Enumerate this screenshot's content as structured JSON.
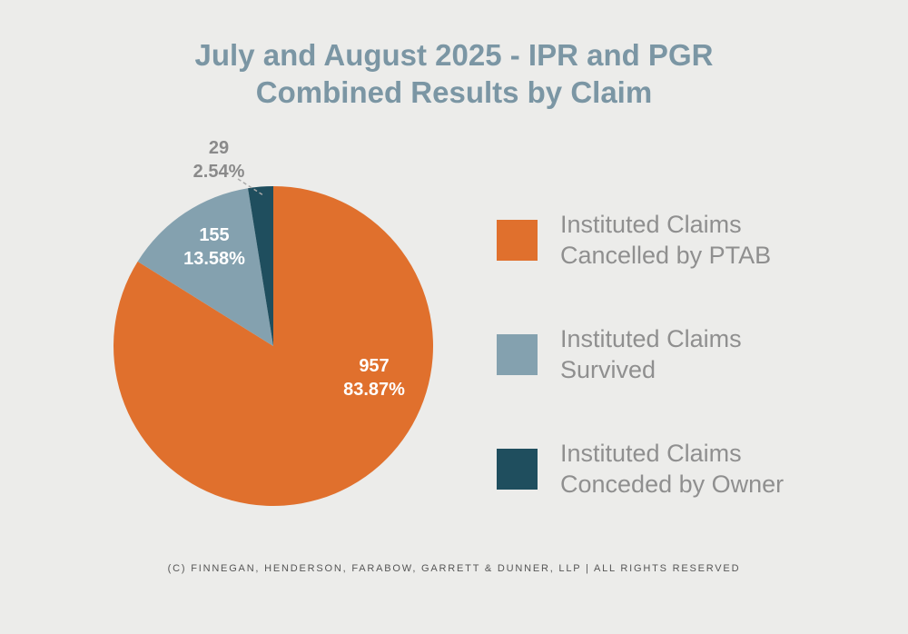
{
  "page": {
    "background_color": "#ececea"
  },
  "title": {
    "line1": "July and August 2025 - IPR and PGR",
    "line2": "Combined Results by Claim",
    "color": "#7b96a4"
  },
  "chart_data": {
    "type": "pie",
    "title": "July and August 2025 - IPR and PGR Combined Results by Claim",
    "direction": "clockwise",
    "start_angle_deg": 0,
    "legend_position": "right",
    "total": 1141,
    "slices": [
      {
        "label": "Instituted Claims Cancelled by PTAB",
        "value": 957,
        "percent": 83.87,
        "value_label": "957",
        "percent_label": "83.87%",
        "color": "#e0702d",
        "label_placement": "inside"
      },
      {
        "label": "Instituted Claims Survived",
        "value": 155,
        "percent": 13.58,
        "value_label": "155",
        "percent_label": "13.58%",
        "color": "#84a1af",
        "label_placement": "inside"
      },
      {
        "label": "Instituted Claims Conceded by Owner",
        "value": 29,
        "percent": 2.54,
        "value_label": "29",
        "percent_label": "2.54%",
        "color": "#1f4e5e",
        "label_placement": "outside-with-leader-line"
      }
    ]
  },
  "legend": {
    "items": [
      {
        "line1": "Instituted Claims",
        "line2": "Cancelled by PTAB",
        "color": "#e0702d"
      },
      {
        "line1": "Instituted Claims",
        "line2": "Survived",
        "color": "#84a1af"
      },
      {
        "line1": "Instituted Claims",
        "line2": "Conceded by Owner",
        "color": "#1f4e5e"
      }
    ]
  },
  "footer": {
    "text": "(C) FINNEGAN, HENDERSON, FARABOW, GARRETT & DUNNER, LLP | ALL RIGHTS RESERVED"
  }
}
